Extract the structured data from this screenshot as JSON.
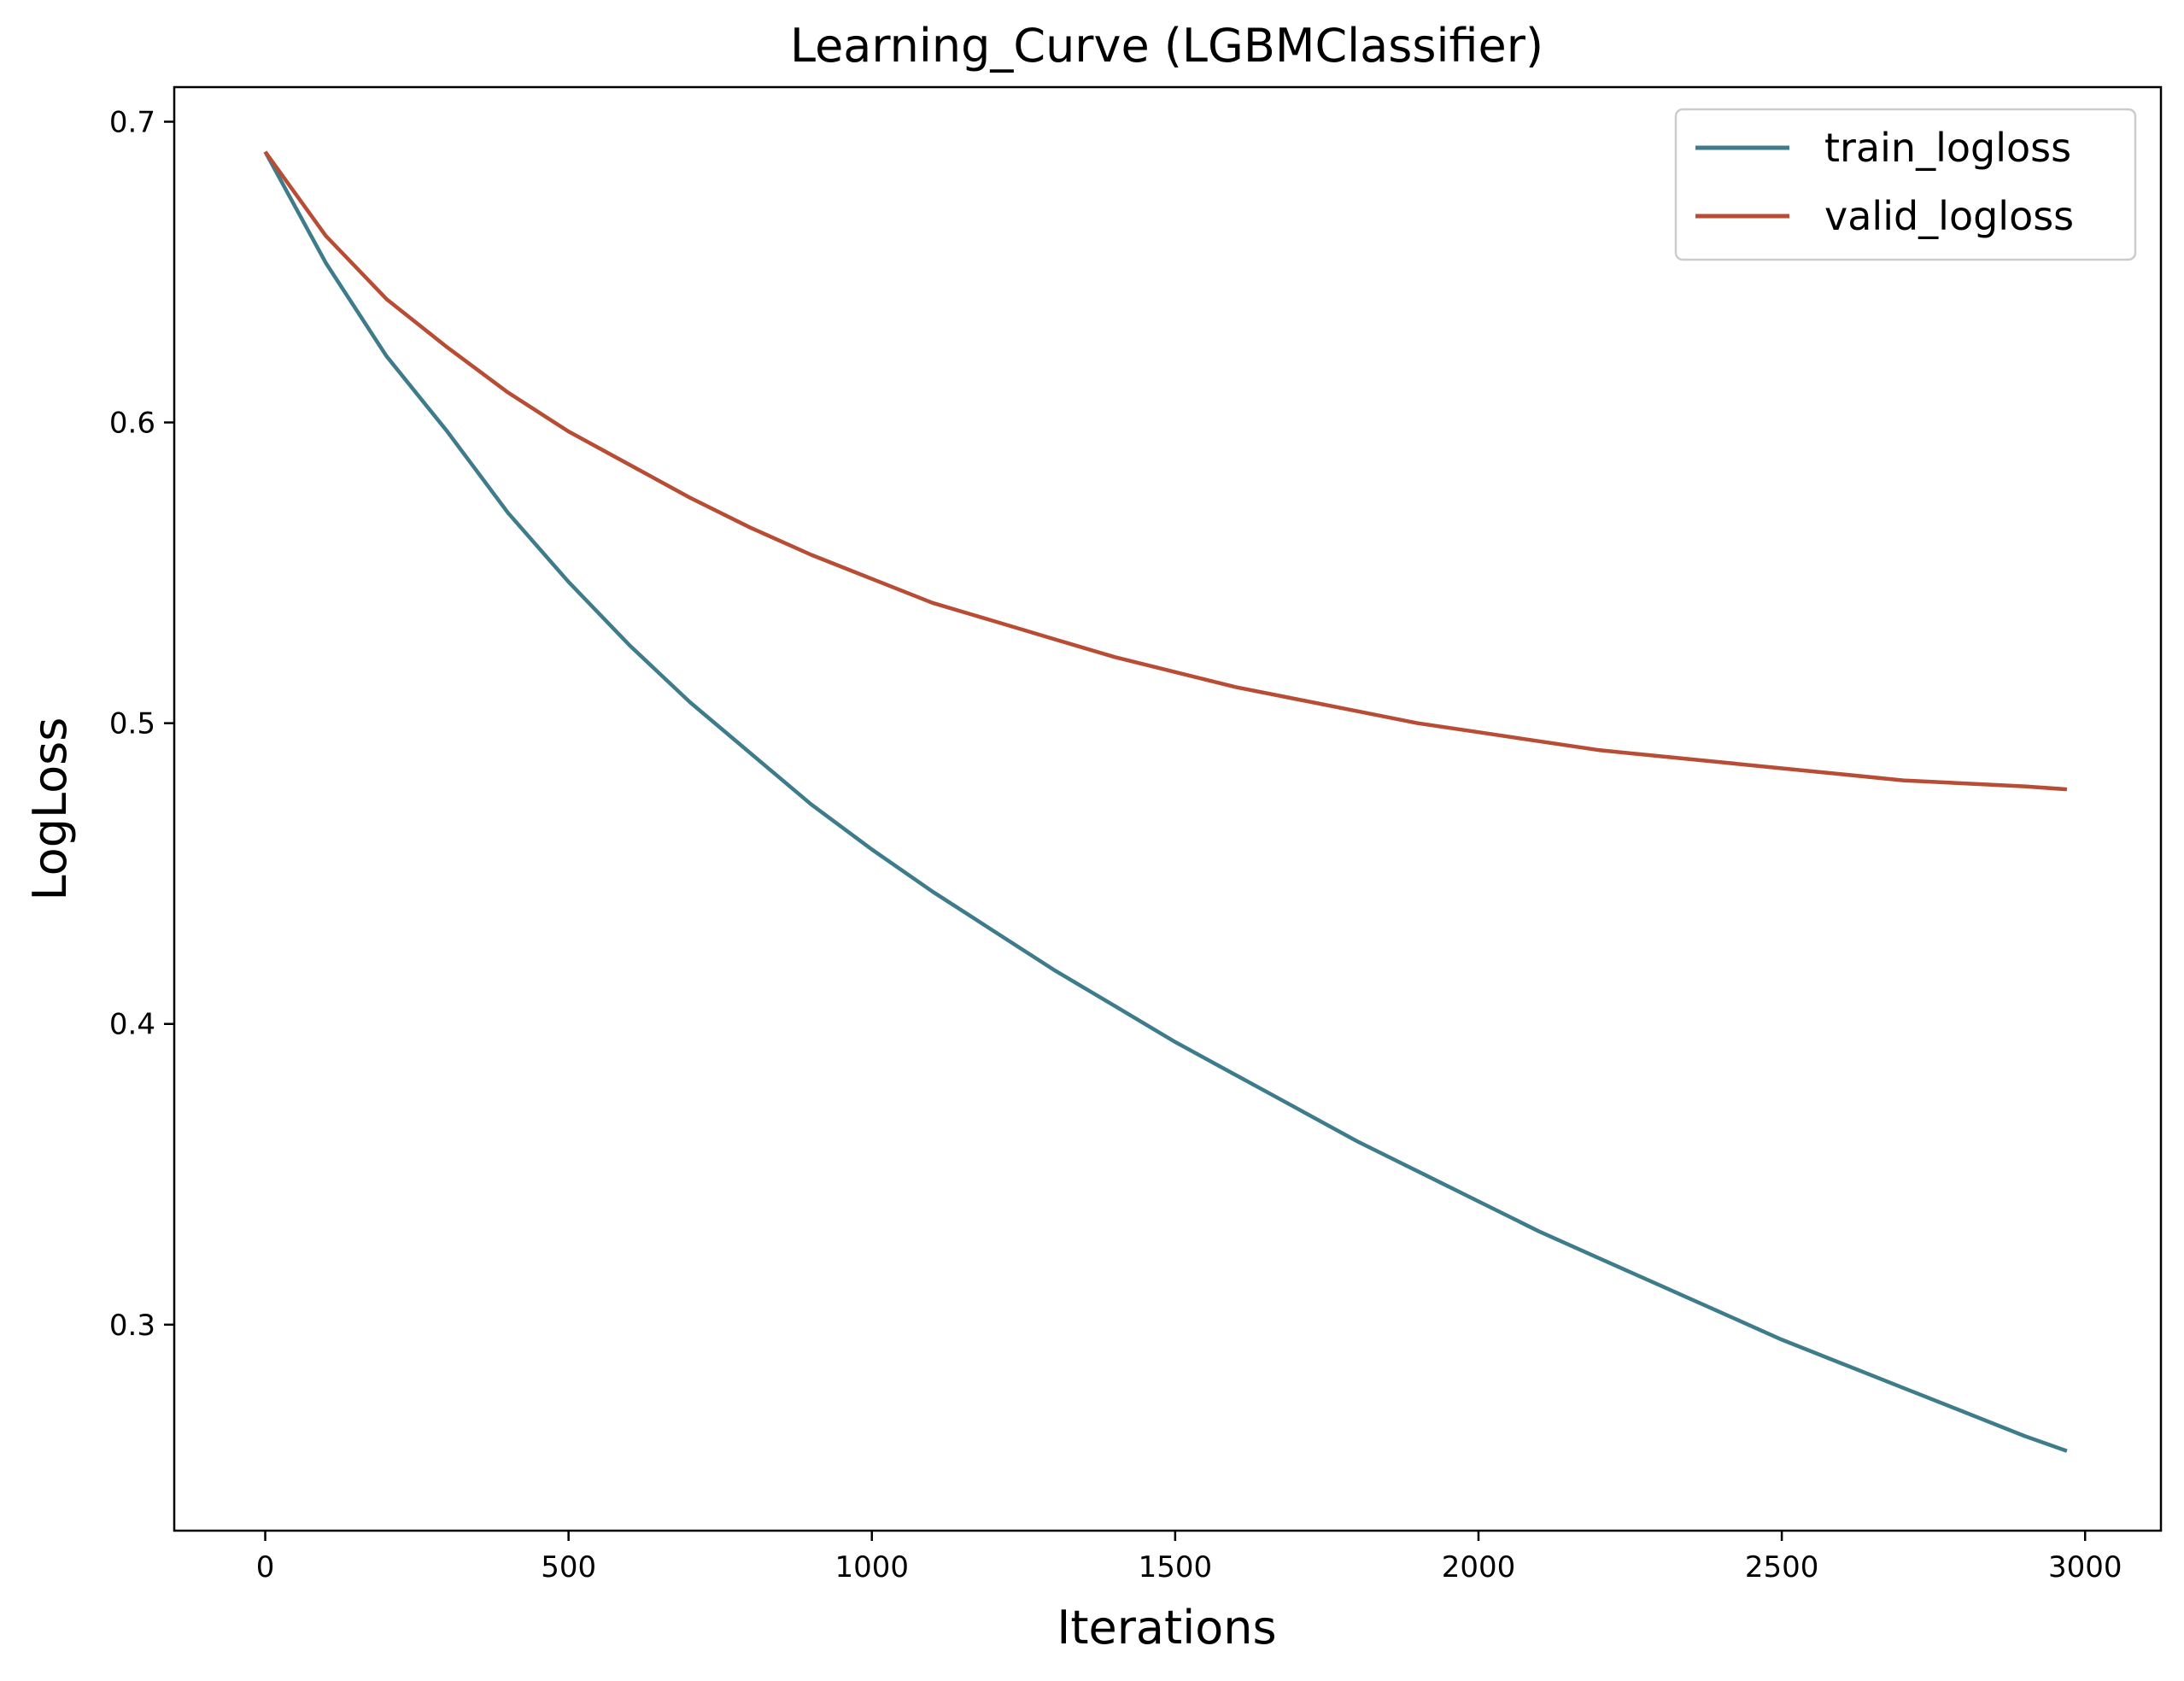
{
  "chart_data": {
    "type": "line",
    "title": "Learning_Curve (LGBMClassifier)",
    "xlabel": "Iterations",
    "ylabel": "LogLoss",
    "xlim": [
      -150,
      3125
    ],
    "ylim": [
      0.2315,
      0.7115
    ],
    "xticks": [
      0,
      500,
      1000,
      1500,
      2000,
      2500,
      3000
    ],
    "xtick_labels": [
      "0",
      "500",
      "1000",
      "1500",
      "2000",
      "2500",
      "3000"
    ],
    "yticks": [
      0.3,
      0.4,
      0.5,
      0.6,
      0.7
    ],
    "ytick_labels": [
      "0.3",
      "0.4",
      "0.5",
      "0.6",
      "0.7"
    ],
    "grid": false,
    "legend_position": "top-right",
    "series": [
      {
        "name": "train_logloss",
        "color": "#3e7b8b",
        "x": [
          0,
          100,
          200,
          300,
          400,
          500,
          600,
          700,
          800,
          900,
          1000,
          1100,
          1200,
          1300,
          1400,
          1500,
          1600,
          1700,
          1800,
          1900,
          2000,
          2100,
          2200,
          2300,
          2400,
          2500,
          2600,
          2700,
          2800,
          2900,
          2970
        ],
        "values": [
          0.69,
          0.653,
          0.622,
          0.597,
          0.57,
          0.547,
          0.526,
          0.507,
          0.49,
          0.473,
          0.458,
          0.444,
          0.431,
          0.418,
          0.406,
          0.394,
          0.383,
          0.372,
          0.361,
          0.351,
          0.341,
          0.331,
          0.322,
          0.313,
          0.304,
          0.295,
          0.287,
          0.279,
          0.271,
          0.263,
          0.258
        ]
      },
      {
        "name": "valid_logloss",
        "color": "#b84c34",
        "x": [
          0,
          100,
          200,
          300,
          400,
          500,
          600,
          700,
          800,
          900,
          1000,
          1100,
          1200,
          1300,
          1400,
          1500,
          1600,
          1700,
          1800,
          1900,
          2000,
          2100,
          2200,
          2300,
          2400,
          2500,
          2600,
          2700,
          2800,
          2900,
          2970
        ],
        "values": [
          0.69,
          0.662,
          0.641,
          0.625,
          0.61,
          0.597,
          0.586,
          0.575,
          0.565,
          0.556,
          0.548,
          0.54,
          0.534,
          0.528,
          0.522,
          0.517,
          0.512,
          0.508,
          0.504,
          0.5,
          0.497,
          0.494,
          0.491,
          0.489,
          0.487,
          0.485,
          0.483,
          0.481,
          0.48,
          0.479,
          0.478
        ]
      }
    ]
  }
}
